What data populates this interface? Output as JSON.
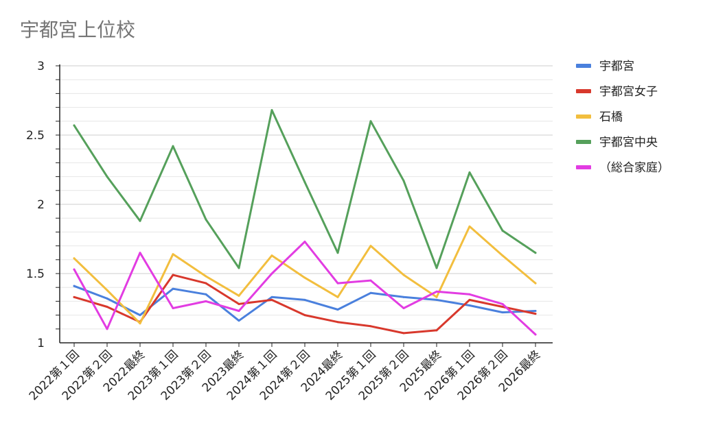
{
  "chart_data": {
    "type": "line",
    "title": "宇都宮上位校",
    "xlabel": "",
    "ylabel": "",
    "categories": [
      "2022第１回",
      "2022第２回",
      "2022最終",
      "2023第１回",
      "2023第２回",
      "2023最終",
      "2024第１回",
      "2024第２回",
      "2024最終",
      "2025第１回",
      "2025第２回",
      "2025最終",
      "2026第１回",
      "2026第２回",
      "2026最終"
    ],
    "ylim": [
      1,
      3
    ],
    "yticks": [
      "1",
      "1.5",
      "2",
      "2.5",
      "3"
    ],
    "ytick_values": [
      1,
      1.5,
      2,
      2.5,
      3
    ],
    "grid": true,
    "legend_position": "right",
    "series": [
      {
        "name": "宇都宮",
        "color": "#4a80dd",
        "values": [
          1.41,
          1.32,
          1.2,
          1.39,
          1.35,
          1.16,
          1.33,
          1.31,
          1.24,
          1.36,
          1.33,
          1.31,
          1.27,
          1.22,
          1.23
        ]
      },
      {
        "name": "宇都宮女子",
        "color": "#d8382c",
        "values": [
          1.33,
          1.26,
          1.15,
          1.49,
          1.43,
          1.28,
          1.31,
          1.2,
          1.15,
          1.12,
          1.07,
          1.09,
          1.31,
          1.26,
          1.21
        ]
      },
      {
        "name": "石橋",
        "color": "#f2be3e",
        "values": [
          1.61,
          1.38,
          1.14,
          1.64,
          1.48,
          1.34,
          1.63,
          1.47,
          1.33,
          1.7,
          1.49,
          1.33,
          1.84,
          1.63,
          1.43
        ]
      },
      {
        "name": "宇都宮中央",
        "color": "#55a05b",
        "values": [
          2.57,
          2.2,
          1.88,
          2.42,
          1.89,
          1.54,
          2.68,
          2.16,
          1.65,
          2.6,
          2.17,
          1.54,
          2.23,
          1.81,
          1.65
        ]
      },
      {
        "name": "（総合家庭）",
        "color": "#e23ce2",
        "values": [
          1.53,
          1.1,
          1.65,
          1.25,
          1.3,
          1.23,
          1.5,
          1.73,
          1.43,
          1.45,
          1.25,
          1.37,
          1.35,
          1.28,
          1.06
        ]
      }
    ]
  }
}
